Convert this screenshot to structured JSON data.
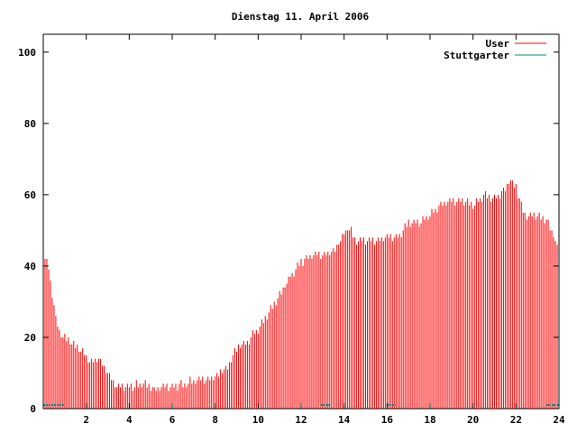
{
  "chart_data": {
    "type": "bar",
    "title": "Dienstag 11. April 2006",
    "xlabel": "",
    "ylabel": "",
    "xlim": [
      0,
      24
    ],
    "ylim": [
      0,
      105
    ],
    "x_ticks": [
      2,
      4,
      6,
      8,
      10,
      12,
      14,
      16,
      18,
      20,
      22,
      24
    ],
    "y_ticks": [
      0,
      20,
      40,
      60,
      80,
      100
    ],
    "grid": false,
    "legend_position": "top-right",
    "series": [
      {
        "name": "User",
        "color": "#ff0000",
        "anchors": [
          [
            0.0,
            43
          ],
          [
            0.2,
            41
          ],
          [
            0.4,
            33
          ],
          [
            0.6,
            24
          ],
          [
            0.8,
            21
          ],
          [
            1.0,
            20
          ],
          [
            1.4,
            18
          ],
          [
            1.8,
            16
          ],
          [
            2.2,
            13
          ],
          [
            2.6,
            14
          ],
          [
            3.0,
            10
          ],
          [
            3.4,
            6
          ],
          [
            4.0,
            6
          ],
          [
            4.6,
            7
          ],
          [
            5.0,
            6
          ],
          [
            5.2,
            5
          ],
          [
            5.6,
            6
          ],
          [
            6.0,
            6
          ],
          [
            6.6,
            7
          ],
          [
            7.0,
            8
          ],
          [
            7.4,
            8
          ],
          [
            8.0,
            9
          ],
          [
            8.6,
            12
          ],
          [
            9.0,
            17
          ],
          [
            9.5,
            19
          ],
          [
            10.0,
            22
          ],
          [
            10.5,
            27
          ],
          [
            11.0,
            32
          ],
          [
            11.5,
            37
          ],
          [
            12.0,
            41
          ],
          [
            12.5,
            43
          ],
          [
            13.0,
            43
          ],
          [
            13.5,
            44
          ],
          [
            13.8,
            47
          ],
          [
            14.2,
            51
          ],
          [
            14.6,
            47
          ],
          [
            15.0,
            47
          ],
          [
            15.5,
            47
          ],
          [
            16.0,
            48
          ],
          [
            16.5,
            48
          ],
          [
            17.0,
            52
          ],
          [
            17.5,
            52
          ],
          [
            18.0,
            54
          ],
          [
            18.5,
            57
          ],
          [
            19.0,
            58
          ],
          [
            19.5,
            58
          ],
          [
            20.0,
            57
          ],
          [
            20.5,
            60
          ],
          [
            21.0,
            59
          ],
          [
            21.5,
            62
          ],
          [
            21.7,
            64
          ],
          [
            22.0,
            62
          ],
          [
            22.4,
            54
          ],
          [
            23.0,
            54
          ],
          [
            23.4,
            53
          ],
          [
            23.8,
            48
          ],
          [
            24.0,
            43
          ]
        ]
      },
      {
        "name": "Stuttgarter",
        "color": "#008b8b",
        "values_note_segments": [
          [
            0.0,
            1.0,
            1
          ],
          [
            12.9,
            13.4,
            1
          ],
          [
            16.0,
            16.4,
            1
          ],
          [
            23.4,
            24.0,
            1
          ]
        ]
      }
    ]
  }
}
